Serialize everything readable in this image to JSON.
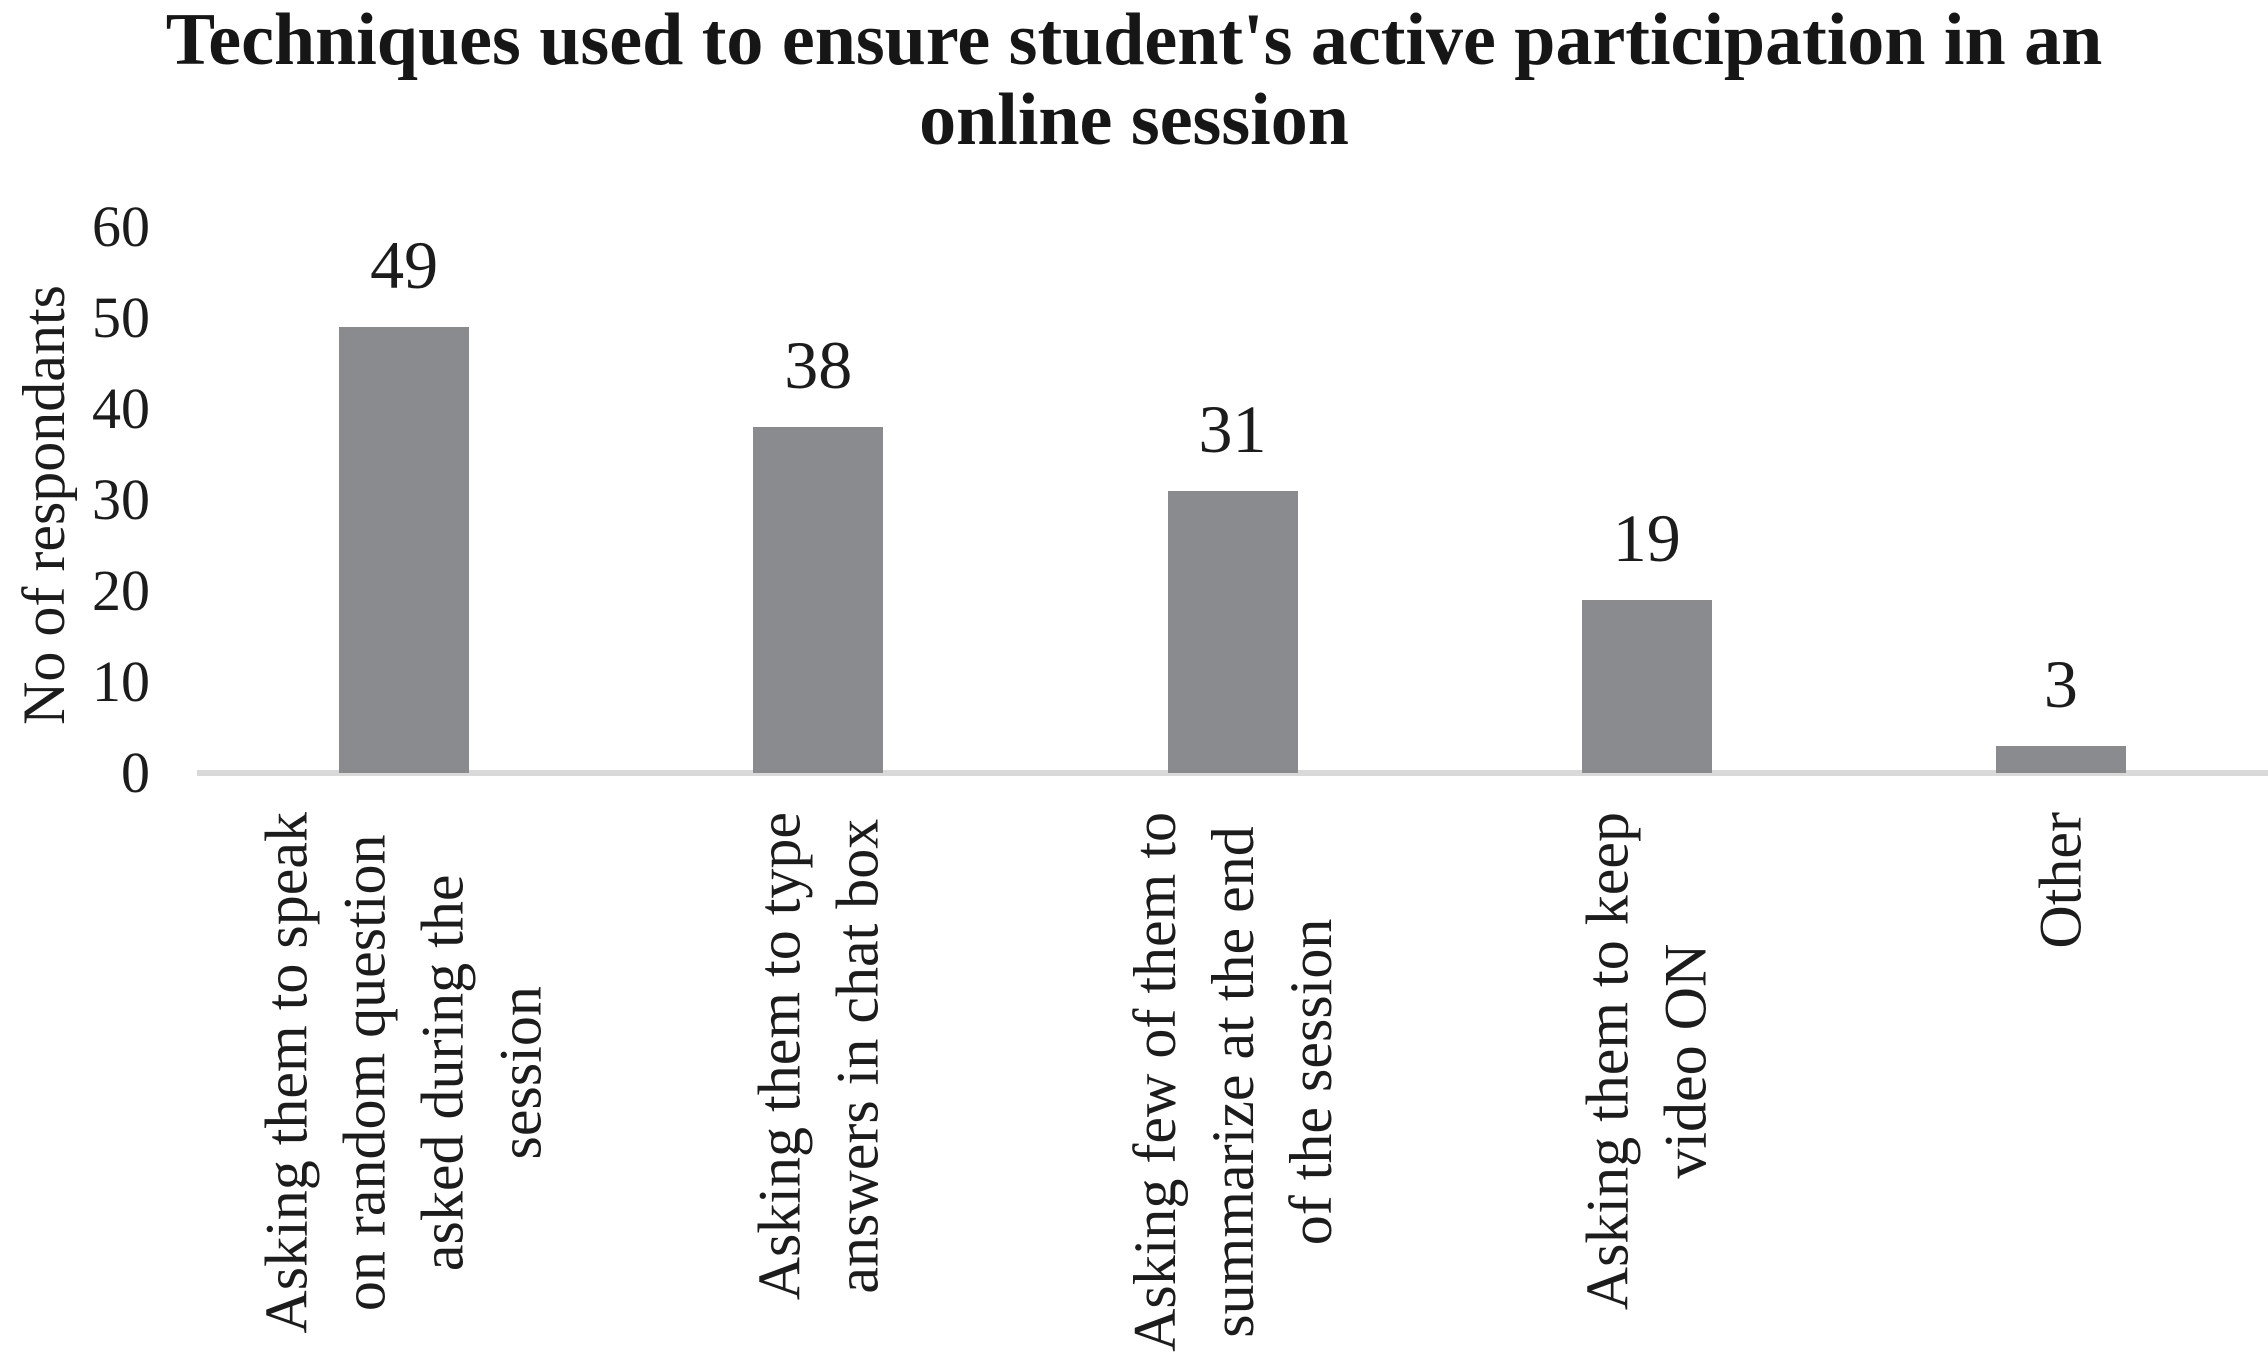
{
  "title": {
    "line1": "Techniques used to ensure student's active participation in an",
    "line2": "online session"
  },
  "y_axis": {
    "label": "No of respondants",
    "ticks": [
      60,
      50,
      40,
      30,
      20,
      10,
      0
    ]
  },
  "chart_data": {
    "type": "bar",
    "title": "Techniques used to ensure student's active participation in an online session",
    "xlabel": "",
    "ylabel": "No of respondants",
    "categories": [
      "Asking them to speak\non random question\nasked during the\nsession",
      "Asking them to type\nanswers in chat box",
      "Asking few of them to\nsummarize at the end\nof the session",
      "Asking them to keep\nvideo ON",
      "Other"
    ],
    "values": [
      49,
      38,
      31,
      19,
      3
    ],
    "ylim": [
      0,
      60
    ],
    "ytick_step": 10,
    "grid": false,
    "legend": false,
    "bar_color": "#8a8b8e",
    "axis_line_color": "#d9d9d9",
    "text_color": "#1c1c1c"
  }
}
